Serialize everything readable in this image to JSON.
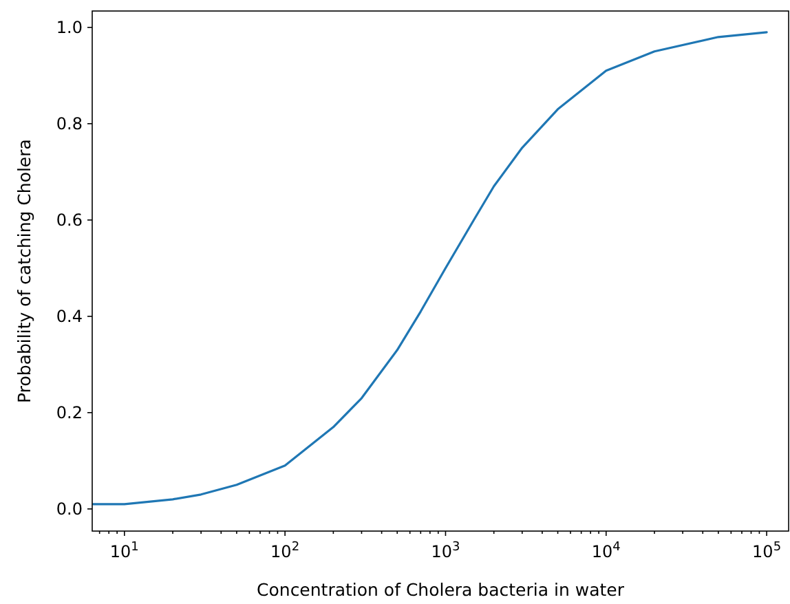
{
  "chart_data": {
    "type": "line",
    "xlabel": "Concentration of Cholera bacteria in water",
    "ylabel": "Probability of catching Cholera",
    "log": "x",
    "xlim": [
      6.3,
      137000
    ],
    "ylim": [
      -0.046,
      1.034
    ],
    "x": [
      6.4,
      10,
      20,
      30,
      50,
      100,
      200,
      300,
      500,
      700,
      1000,
      1500,
      2000,
      3000,
      5000,
      10000,
      20000,
      50000,
      100000
    ],
    "series": [
      {
        "color": "#1f77b4",
        "values": [
          0.01,
          0.01,
          0.02,
          0.03,
          0.05,
          0.09,
          0.17,
          0.23,
          0.33,
          0.41,
          0.5,
          0.6,
          0.67,
          0.75,
          0.83,
          0.91,
          0.95,
          0.98,
          0.99
        ]
      }
    ],
    "xticks": [
      {
        "value": 7,
        "label": null
      },
      {
        "value": 8,
        "label": null
      },
      {
        "value": 9,
        "label": null
      },
      {
        "value": 10,
        "label": "10$^{1}$"
      },
      {
        "value": 20,
        "label": null
      },
      {
        "value": 30,
        "label": null
      },
      {
        "value": 40,
        "label": null
      },
      {
        "value": 50,
        "label": null
      },
      {
        "value": 60,
        "label": null
      },
      {
        "value": 70,
        "label": null
      },
      {
        "value": 80,
        "label": null
      },
      {
        "value": 90,
        "label": null
      },
      {
        "value": 100,
        "label": "10$^{2}$"
      },
      {
        "value": 200,
        "label": null
      },
      {
        "value": 300,
        "label": null
      },
      {
        "value": 400,
        "label": null
      },
      {
        "value": 500,
        "label": null
      },
      {
        "value": 600,
        "label": null
      },
      {
        "value": 700,
        "label": null
      },
      {
        "value": 800,
        "label": null
      },
      {
        "value": 900,
        "label": null
      },
      {
        "value": 1000,
        "label": "10$^{3}$"
      },
      {
        "value": 2000,
        "label": null
      },
      {
        "value": 3000,
        "label": null
      },
      {
        "value": 4000,
        "label": null
      },
      {
        "value": 5000,
        "label": null
      },
      {
        "value": 6000,
        "label": null
      },
      {
        "value": 7000,
        "label": null
      },
      {
        "value": 8000,
        "label": null
      },
      {
        "value": 9000,
        "label": null
      },
      {
        "value": 10000,
        "label": "10$^{4}$"
      },
      {
        "value": 20000,
        "label": null
      },
      {
        "value": 30000,
        "label": null
      },
      {
        "value": 40000,
        "label": null
      },
      {
        "value": 50000,
        "label": null
      },
      {
        "value": 60000,
        "label": null
      },
      {
        "value": 70000,
        "label": null
      },
      {
        "value": 80000,
        "label": null
      },
      {
        "value": 90000,
        "label": null
      },
      {
        "value": 100000,
        "label": "10$^{5}$"
      }
    ],
    "yticks": [
      {
        "value": 0,
        "label": "0.0"
      },
      {
        "value": 0.2,
        "label": "0.2"
      },
      {
        "value": 0.4,
        "label": "0.4"
      },
      {
        "value": 0.6,
        "label": "0.6"
      },
      {
        "value": 0.8,
        "label": "0.8"
      },
      {
        "value": 1,
        "label": "1.0"
      }
    ]
  }
}
